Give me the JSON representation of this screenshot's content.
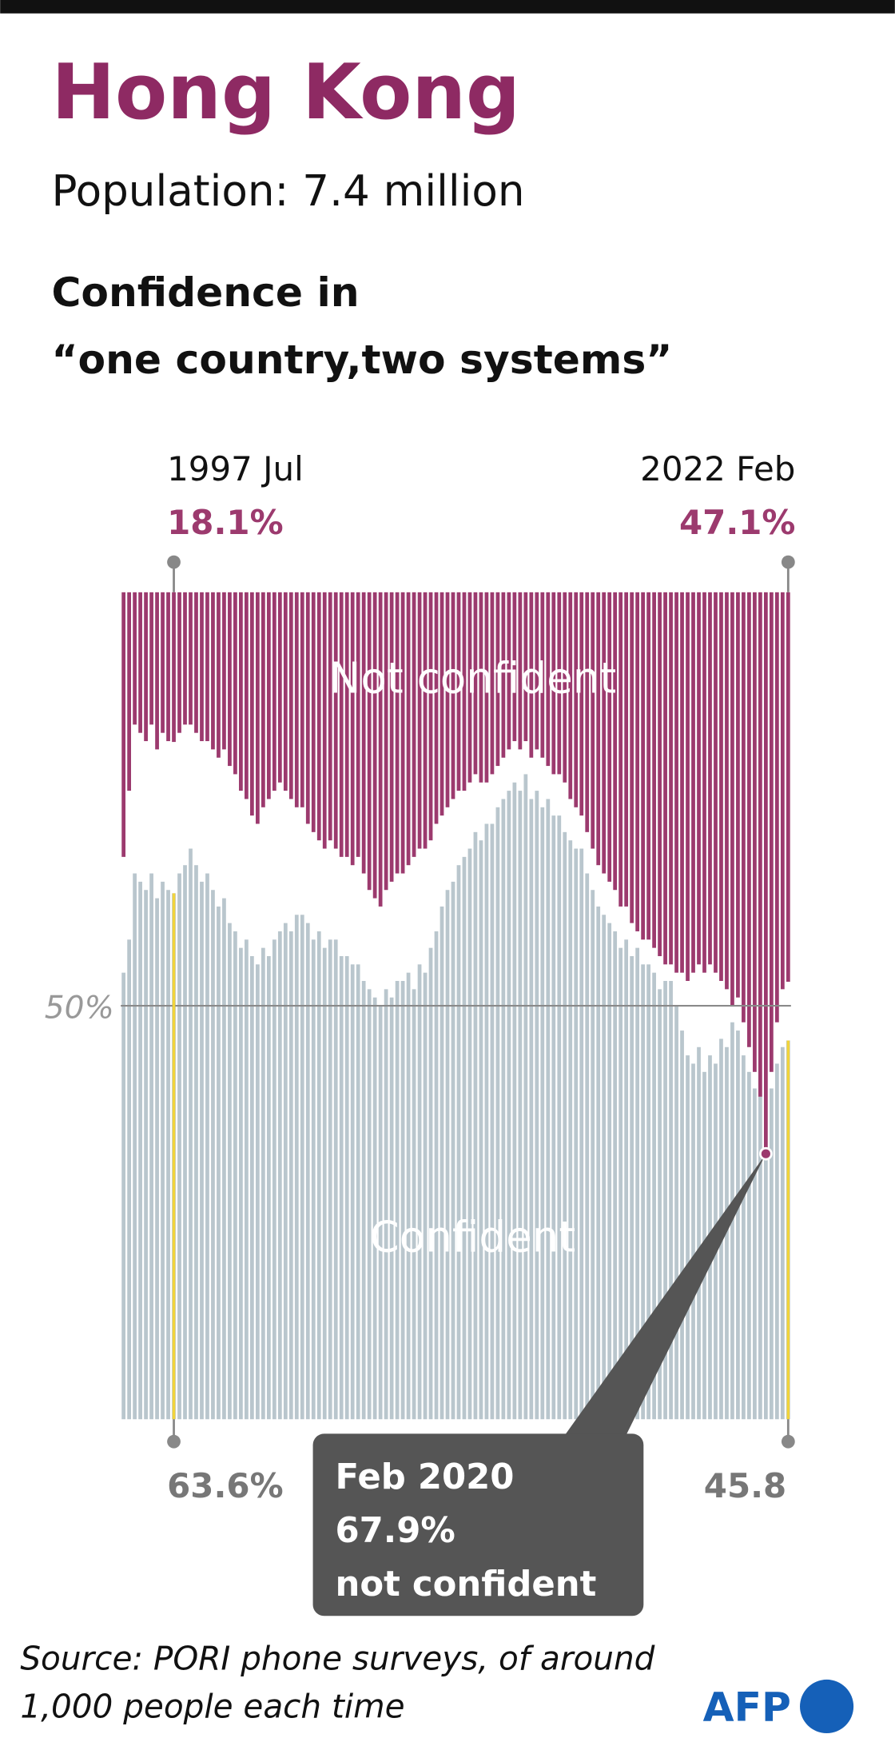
{
  "chart_data": {
    "type": "bar",
    "stacking": "opposed",
    "title": "Hong Kong",
    "subtitle": "Population: 7.4 million",
    "chart_title": [
      "Confidence in",
      "“one country,two systems”"
    ],
    "categories": [
      null,
      null,
      null,
      null,
      null,
      null,
      null,
      null,
      null,
      "1997 Jul",
      null,
      null,
      null,
      null,
      null,
      null,
      null,
      null,
      null,
      null,
      null,
      null,
      null,
      null,
      null,
      null,
      null,
      null,
      null,
      null,
      null,
      null,
      null,
      null,
      null,
      null,
      null,
      null,
      null,
      null,
      null,
      null,
      null,
      null,
      null,
      null,
      null,
      null,
      null,
      null,
      null,
      null,
      null,
      null,
      null,
      null,
      null,
      null,
      null,
      null,
      null,
      null,
      null,
      null,
      null,
      null,
      null,
      null,
      null,
      null,
      null,
      null,
      null,
      null,
      null,
      null,
      null,
      null,
      null,
      null,
      null,
      null,
      null,
      null,
      null,
      null,
      null,
      null,
      null,
      null,
      null,
      null,
      null,
      null,
      null,
      null,
      null,
      null,
      null,
      null,
      null,
      null,
      null,
      null,
      null,
      null,
      null,
      null,
      null,
      null,
      null,
      null,
      null,
      null,
      null,
      "Feb 2020",
      null,
      null,
      null,
      "2022 Feb"
    ],
    "series": [
      {
        "name": "Confident",
        "color": "#b9c6cd",
        "anchor": "bottom",
        "values": [
          54,
          58,
          66,
          65,
          64,
          66,
          63,
          65,
          64,
          63.6,
          66,
          67,
          69,
          67,
          65,
          66,
          64,
          62,
          63,
          60,
          59,
          57,
          58,
          56,
          55,
          57,
          56,
          58,
          59,
          60,
          59,
          61,
          61,
          60,
          58,
          59,
          57,
          58,
          58,
          56,
          56,
          55,
          55,
          53,
          52,
          51,
          50,
          52,
          51,
          53,
          53,
          54,
          52,
          55,
          54,
          57,
          59,
          62,
          64,
          65,
          67,
          68,
          69,
          71,
          70,
          72,
          72,
          74,
          75,
          76,
          77,
          76,
          78,
          75,
          76,
          74,
          75,
          73,
          73,
          71,
          70,
          69,
          69,
          66,
          64,
          62,
          61,
          60,
          59,
          57,
          58,
          56,
          57,
          55,
          55,
          54,
          52,
          53,
          53,
          50,
          47,
          44,
          43,
          45,
          42,
          44,
          43,
          46,
          45,
          48,
          47,
          44,
          42,
          40,
          39,
          32,
          40,
          43,
          45,
          45.8
        ],
        "value_labels": [
          null,
          null,
          null,
          null,
          null,
          null,
          null,
          null,
          null,
          "63.6%",
          null,
          null,
          null,
          null,
          null,
          null,
          null,
          null,
          null,
          null,
          null,
          null,
          null,
          null,
          null,
          null,
          null,
          null,
          null,
          null,
          null,
          null,
          null,
          null,
          null,
          null,
          null,
          null,
          null,
          null,
          null,
          null,
          null,
          null,
          null,
          null,
          null,
          null,
          null,
          null,
          null,
          null,
          null,
          null,
          null,
          null,
          null,
          null,
          null,
          null,
          null,
          null,
          null,
          null,
          null,
          null,
          null,
          null,
          null,
          null,
          null,
          null,
          null,
          null,
          null,
          null,
          null,
          null,
          null,
          null,
          null,
          null,
          null,
          null,
          null,
          null,
          null,
          null,
          null,
          null,
          null,
          null,
          null,
          null,
          null,
          null,
          null,
          null,
          null,
          null,
          null,
          null,
          null,
          null,
          null,
          null,
          null,
          null,
          null,
          null,
          null,
          null,
          null,
          null,
          null,
          null,
          null,
          null,
          null,
          "45.8"
        ]
      },
      {
        "name": "Not confident",
        "color": "#9c3a6e",
        "anchor": "top",
        "values": [
          32,
          24,
          16,
          17,
          18,
          16,
          19,
          17,
          18,
          18.1,
          17,
          16,
          16,
          17,
          18,
          18,
          19,
          20,
          19,
          21,
          22,
          24,
          25,
          27,
          28,
          26,
          25,
          24,
          23,
          24,
          25,
          26,
          26,
          28,
          29,
          30,
          31,
          30,
          31,
          32,
          32,
          33,
          32,
          34,
          36,
          37,
          38,
          36,
          35,
          34,
          34,
          33,
          32,
          31,
          31,
          30,
          28,
          27,
          26,
          25,
          24,
          24,
          23,
          22,
          23,
          23,
          22,
          21,
          20,
          19,
          18,
          19,
          18,
          20,
          19,
          20,
          21,
          22,
          22,
          23,
          25,
          26,
          27,
          29,
          31,
          33,
          34,
          35,
          36,
          38,
          38,
          40,
          41,
          42,
          42,
          43,
          44,
          45,
          45,
          46,
          46,
          47,
          46,
          45,
          46,
          45,
          46,
          47,
          48,
          50,
          49,
          52,
          55,
          58,
          61,
          67.9,
          58,
          52,
          48,
          47.1
        ],
        "value_labels": [
          null,
          null,
          null,
          null,
          null,
          null,
          null,
          null,
          null,
          "18.1%",
          null,
          null,
          null,
          null,
          null,
          null,
          null,
          null,
          null,
          null,
          null,
          null,
          null,
          null,
          null,
          null,
          null,
          null,
          null,
          null,
          null,
          null,
          null,
          null,
          null,
          null,
          null,
          null,
          null,
          null,
          null,
          null,
          null,
          null,
          null,
          null,
          null,
          null,
          null,
          null,
          null,
          null,
          null,
          null,
          null,
          null,
          null,
          null,
          null,
          null,
          null,
          null,
          null,
          null,
          null,
          null,
          null,
          null,
          null,
          null,
          null,
          null,
          null,
          null,
          null,
          null,
          null,
          null,
          null,
          null,
          null,
          null,
          null,
          null,
          null,
          null,
          null,
          null,
          null,
          null,
          null,
          null,
          null,
          null,
          null,
          null,
          null,
          null,
          null,
          null,
          null,
          null,
          null,
          null,
          null,
          null,
          null,
          null,
          null,
          null,
          null,
          null,
          null,
          null,
          null,
          "67.9%",
          null,
          null,
          null,
          "47.1%"
        ]
      }
    ],
    "callout_note": "not confident",
    "ylim": [
      0,
      100
    ],
    "yticks": [
      {
        "value": 50,
        "label": "50%"
      }
    ],
    "source": [
      "Source: PORI phone surveys, of around",
      "1,000 people each time"
    ],
    "logo": "AFP"
  }
}
